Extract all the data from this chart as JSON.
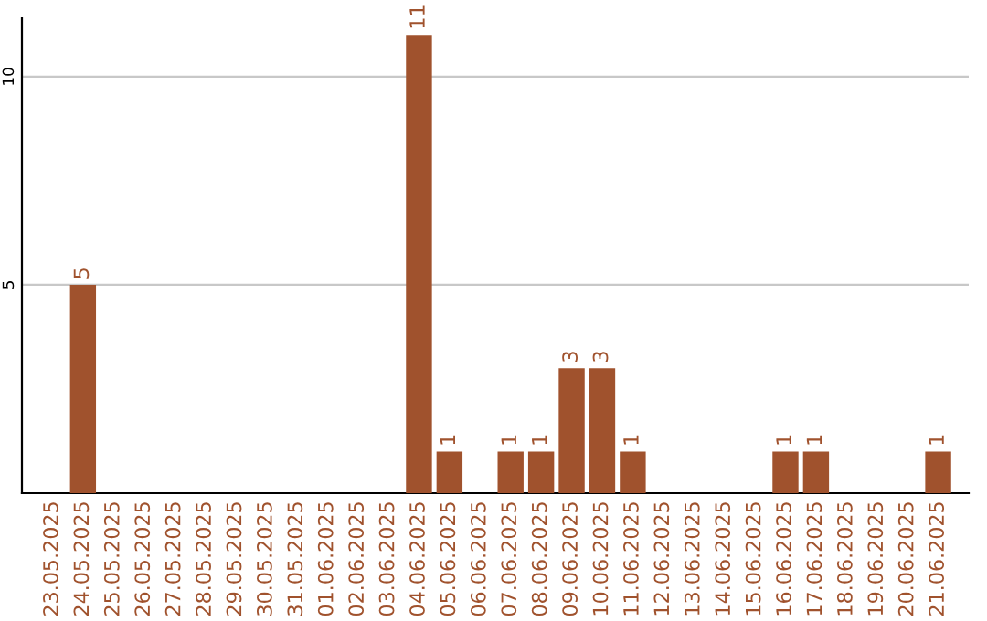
{
  "chart_data": {
    "type": "bar",
    "categories": [
      "23.05.2025",
      "24.05.2025",
      "25.05.2025",
      "26.05.2025",
      "27.05.2025",
      "28.05.2025",
      "29.05.2025",
      "30.05.2025",
      "31.05.2025",
      "01.06.2025",
      "02.06.2025",
      "03.06.2025",
      "04.06.2025",
      "05.06.2025",
      "06.06.2025",
      "07.06.2025",
      "08.06.2025",
      "09.06.2025",
      "10.06.2025",
      "11.06.2025",
      "12.06.2025",
      "13.06.2025",
      "14.06.2025",
      "15.06.2025",
      "16.06.2025",
      "17.06.2025",
      "18.06.2025",
      "19.06.2025",
      "20.06.2025",
      "21.06.2025"
    ],
    "values": [
      0,
      5,
      0,
      0,
      0,
      0,
      0,
      0,
      0,
      0,
      0,
      0,
      11,
      1,
      0,
      1,
      1,
      3,
      3,
      1,
      0,
      0,
      0,
      0,
      1,
      1,
      0,
      0,
      0,
      1
    ],
    "value_labels": [
      null,
      "5",
      null,
      null,
      null,
      null,
      null,
      null,
      null,
      null,
      null,
      null,
      "11",
      "1",
      null,
      "1",
      "1",
      "3",
      "3",
      "1",
      null,
      null,
      null,
      null,
      "1",
      "1",
      null,
      null,
      null,
      "1"
    ],
    "color": "#a0522d",
    "ylim": [
      0,
      11.4
    ],
    "yticks": [
      5,
      10
    ],
    "grid": "y"
  }
}
